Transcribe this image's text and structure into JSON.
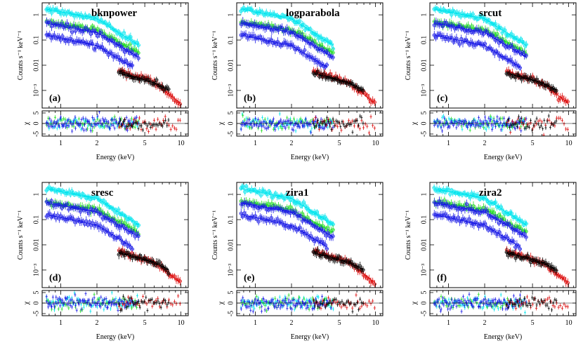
{
  "figure": {
    "xlabel": "Energy (keV)",
    "ylabel_spec": "Counts s⁻¹ keV⁻¹",
    "ylabel_resid": "χ"
  },
  "colors": {
    "cyan": "#00e5ee",
    "blue": "#1a1ae6",
    "green": "#22dd22",
    "red": "#dd1111",
    "black": "#000000",
    "frame": "#000000"
  },
  "chart_data": [
    {
      "type": "scatter",
      "model": "bknpower",
      "panel_letter": "(a)",
      "x_scale": "log",
      "y_scale": "log",
      "xlim": [
        0.7,
        11.5
      ],
      "ylim_spectrum": [
        0.0002,
        3
      ],
      "ylim_residual": [
        -6,
        6
      ],
      "x_ticks": [
        1,
        2,
        5,
        10
      ],
      "x_tick_labels": [
        "1",
        "2",
        "5",
        "10"
      ],
      "y_ticks": [
        1,
        0.1,
        0.01,
        0.001
      ],
      "y_tick_labels": [
        "1",
        "0.1",
        "0.01",
        "10⁻³"
      ],
      "resid_ticks": [
        5,
        0,
        -5
      ],
      "resid_tick_labels": [
        "5",
        "0",
        "-5"
      ],
      "series": [
        {
          "color": "cyan",
          "x_range": [
            0.75,
            4.5
          ],
          "y_at": [
            [
              0.8,
              1.6
            ],
            [
              2.0,
              0.7
            ],
            [
              4.5,
              0.06
            ]
          ]
        },
        {
          "color": "green",
          "x_range": [
            0.75,
            4.5
          ],
          "y_at": [
            [
              0.8,
              0.5
            ],
            [
              2.0,
              0.25
            ],
            [
              4.5,
              0.03
            ]
          ]
        },
        {
          "color": "blue",
          "x_range": [
            0.75,
            4.5
          ],
          "y_at": [
            [
              0.8,
              0.45
            ],
            [
              2.0,
              0.2
            ],
            [
              4.5,
              0.02
            ]
          ]
        },
        {
          "color": "blue",
          "x_range": [
            0.75,
            4.0
          ],
          "y_at": [
            [
              0.8,
              0.15
            ],
            [
              2.0,
              0.06
            ],
            [
              4.0,
              0.008
            ]
          ]
        },
        {
          "color": "red",
          "x_range": [
            3.0,
            10.0
          ],
          "y_at": [
            [
              3.0,
              0.006
            ],
            [
              6.0,
              0.002
            ],
            [
              10.0,
              0.0003
            ]
          ]
        },
        {
          "color": "black",
          "x_range": [
            3.0,
            8.0
          ],
          "y_at": [
            [
              3.0,
              0.005
            ],
            [
              6.0,
              0.002
            ],
            [
              8.0,
              0.001
            ]
          ]
        }
      ]
    },
    {
      "type": "scatter",
      "model": "logparabola",
      "panel_letter": "(b)",
      "x_scale": "log",
      "y_scale": "log",
      "xlim": [
        0.7,
        11.5
      ],
      "ylim_spectrum": [
        0.0002,
        3
      ],
      "ylim_residual": [
        -6,
        6
      ],
      "x_ticks": [
        1,
        2,
        5,
        10
      ],
      "x_tick_labels": [
        "1",
        "2",
        "5",
        "10"
      ],
      "y_ticks": [
        1,
        0.1,
        0.01,
        0.001
      ],
      "y_tick_labels": [
        "1",
        "0.1",
        "0.01",
        "10⁻³"
      ],
      "resid_ticks": [
        5,
        0,
        -5
      ],
      "resid_tick_labels": [
        "5",
        "0",
        "-5"
      ],
      "series": [
        {
          "color": "cyan",
          "x_range": [
            0.75,
            4.5
          ],
          "y_at": [
            [
              0.8,
              1.6
            ],
            [
              2.0,
              0.7
            ],
            [
              4.5,
              0.06
            ]
          ]
        },
        {
          "color": "green",
          "x_range": [
            0.75,
            4.5
          ],
          "y_at": [
            [
              0.8,
              0.5
            ],
            [
              2.0,
              0.25
            ],
            [
              4.5,
              0.03
            ]
          ]
        },
        {
          "color": "blue",
          "x_range": [
            0.75,
            4.5
          ],
          "y_at": [
            [
              0.8,
              0.45
            ],
            [
              2.0,
              0.2
            ],
            [
              4.5,
              0.02
            ]
          ]
        },
        {
          "color": "blue",
          "x_range": [
            0.75,
            4.0
          ],
          "y_at": [
            [
              0.8,
              0.15
            ],
            [
              2.0,
              0.06
            ],
            [
              4.0,
              0.008
            ]
          ]
        },
        {
          "color": "red",
          "x_range": [
            3.0,
            10.0
          ],
          "y_at": [
            [
              3.0,
              0.006
            ],
            [
              6.0,
              0.002
            ],
            [
              10.0,
              0.0003
            ]
          ]
        },
        {
          "color": "black",
          "x_range": [
            3.0,
            8.0
          ],
          "y_at": [
            [
              3.0,
              0.005
            ],
            [
              6.0,
              0.002
            ],
            [
              8.0,
              0.001
            ]
          ]
        }
      ]
    },
    {
      "type": "scatter",
      "model": "srcut",
      "panel_letter": "(c)",
      "x_scale": "log",
      "y_scale": "log",
      "xlim": [
        0.7,
        11.5
      ],
      "ylim_spectrum": [
        0.0002,
        3
      ],
      "ylim_residual": [
        -6,
        6
      ],
      "x_ticks": [
        1,
        2,
        5,
        10
      ],
      "x_tick_labels": [
        "1",
        "2",
        "5",
        "10"
      ],
      "y_ticks": [
        1,
        0.1,
        0.01,
        0.001
      ],
      "y_tick_labels": [
        "1",
        "0.1",
        "0.01",
        "10⁻³"
      ],
      "resid_ticks": [
        5,
        0,
        -5
      ],
      "resid_tick_labels": [
        "5",
        "0",
        "-5"
      ],
      "series": [
        {
          "color": "cyan",
          "x_range": [
            0.75,
            4.5
          ],
          "y_at": [
            [
              0.8,
              1.6
            ],
            [
              2.0,
              0.7
            ],
            [
              4.5,
              0.06
            ]
          ]
        },
        {
          "color": "green",
          "x_range": [
            0.75,
            4.5
          ],
          "y_at": [
            [
              0.8,
              0.5
            ],
            [
              2.0,
              0.25
            ],
            [
              4.5,
              0.03
            ]
          ]
        },
        {
          "color": "blue",
          "x_range": [
            0.75,
            4.5
          ],
          "y_at": [
            [
              0.8,
              0.45
            ],
            [
              2.0,
              0.2
            ],
            [
              4.5,
              0.02
            ]
          ]
        },
        {
          "color": "blue",
          "x_range": [
            0.75,
            4.0
          ],
          "y_at": [
            [
              0.8,
              0.15
            ],
            [
              2.0,
              0.06
            ],
            [
              4.0,
              0.008
            ]
          ]
        },
        {
          "color": "red",
          "x_range": [
            3.0,
            10.0
          ],
          "y_at": [
            [
              3.0,
              0.006
            ],
            [
              6.0,
              0.002
            ],
            [
              10.0,
              0.0003
            ]
          ]
        },
        {
          "color": "black",
          "x_range": [
            3.0,
            8.0
          ],
          "y_at": [
            [
              3.0,
              0.005
            ],
            [
              6.0,
              0.002
            ],
            [
              8.0,
              0.001
            ]
          ]
        }
      ]
    },
    {
      "type": "scatter",
      "model": "sresc",
      "panel_letter": "(d)",
      "x_scale": "log",
      "y_scale": "log",
      "xlim": [
        0.7,
        11.5
      ],
      "ylim_spectrum": [
        0.0002,
        3
      ],
      "ylim_residual": [
        -6,
        6
      ],
      "x_ticks": [
        1,
        2,
        5,
        10
      ],
      "x_tick_labels": [
        "1",
        "2",
        "5",
        "10"
      ],
      "y_ticks": [
        1,
        0.1,
        0.01,
        0.001
      ],
      "y_tick_labels": [
        "1",
        "0.1",
        "0.01",
        "10⁻³"
      ],
      "resid_ticks": [
        5,
        0,
        -5
      ],
      "resid_tick_labels": [
        "5",
        "0",
        "-5"
      ],
      "series": [
        {
          "color": "cyan",
          "x_range": [
            0.75,
            4.5
          ],
          "y_at": [
            [
              0.8,
              1.6
            ],
            [
              2.0,
              0.7
            ],
            [
              4.5,
              0.06
            ]
          ]
        },
        {
          "color": "green",
          "x_range": [
            0.75,
            4.5
          ],
          "y_at": [
            [
              0.8,
              0.5
            ],
            [
              2.0,
              0.25
            ],
            [
              4.5,
              0.03
            ]
          ]
        },
        {
          "color": "blue",
          "x_range": [
            0.75,
            4.5
          ],
          "y_at": [
            [
              0.8,
              0.45
            ],
            [
              2.0,
              0.2
            ],
            [
              4.5,
              0.02
            ]
          ]
        },
        {
          "color": "blue",
          "x_range": [
            0.75,
            4.0
          ],
          "y_at": [
            [
              0.8,
              0.15
            ],
            [
              2.0,
              0.06
            ],
            [
              4.0,
              0.008
            ]
          ]
        },
        {
          "color": "red",
          "x_range": [
            3.0,
            10.0
          ],
          "y_at": [
            [
              3.0,
              0.006
            ],
            [
              6.0,
              0.002
            ],
            [
              10.0,
              0.0003
            ]
          ]
        },
        {
          "color": "black",
          "x_range": [
            3.0,
            8.0
          ],
          "y_at": [
            [
              3.0,
              0.005
            ],
            [
              6.0,
              0.002
            ],
            [
              8.0,
              0.001
            ]
          ]
        }
      ]
    },
    {
      "type": "scatter",
      "model": "zira1",
      "panel_letter": "(e)",
      "x_scale": "log",
      "y_scale": "log",
      "xlim": [
        0.7,
        11.5
      ],
      "ylim_spectrum": [
        0.0002,
        3
      ],
      "ylim_residual": [
        -6,
        6
      ],
      "x_ticks": [
        1,
        2,
        5,
        10
      ],
      "x_tick_labels": [
        "1",
        "2",
        "5",
        "10"
      ],
      "y_ticks": [
        1,
        0.1,
        0.01,
        0.001
      ],
      "y_tick_labels": [
        "1",
        "0.1",
        "0.01",
        "10⁻³"
      ],
      "resid_ticks": [
        5,
        0,
        -5
      ],
      "resid_tick_labels": [
        "5",
        "0",
        "-5"
      ],
      "series": [
        {
          "color": "cyan",
          "x_range": [
            0.75,
            4.5
          ],
          "y_at": [
            [
              0.8,
              1.6
            ],
            [
              2.0,
              0.7
            ],
            [
              4.5,
              0.06
            ]
          ]
        },
        {
          "color": "green",
          "x_range": [
            0.75,
            4.5
          ],
          "y_at": [
            [
              0.8,
              0.5
            ],
            [
              2.0,
              0.25
            ],
            [
              4.5,
              0.03
            ]
          ]
        },
        {
          "color": "blue",
          "x_range": [
            0.75,
            4.5
          ],
          "y_at": [
            [
              0.8,
              0.45
            ],
            [
              2.0,
              0.2
            ],
            [
              4.5,
              0.02
            ]
          ]
        },
        {
          "color": "blue",
          "x_range": [
            0.75,
            4.0
          ],
          "y_at": [
            [
              0.8,
              0.15
            ],
            [
              2.0,
              0.06
            ],
            [
              4.0,
              0.008
            ]
          ]
        },
        {
          "color": "red",
          "x_range": [
            3.0,
            10.0
          ],
          "y_at": [
            [
              3.0,
              0.006
            ],
            [
              6.0,
              0.002
            ],
            [
              10.0,
              0.0003
            ]
          ]
        },
        {
          "color": "black",
          "x_range": [
            3.0,
            8.0
          ],
          "y_at": [
            [
              3.0,
              0.005
            ],
            [
              6.0,
              0.002
            ],
            [
              8.0,
              0.001
            ]
          ]
        }
      ]
    },
    {
      "type": "scatter",
      "model": "zira2",
      "panel_letter": "(f)",
      "x_scale": "log",
      "y_scale": "log",
      "xlim": [
        0.7,
        11.5
      ],
      "ylim_spectrum": [
        0.0002,
        3
      ],
      "ylim_residual": [
        -6,
        6
      ],
      "x_ticks": [
        1,
        2,
        5,
        10
      ],
      "x_tick_labels": [
        "1",
        "2",
        "5",
        "10"
      ],
      "y_ticks": [
        1,
        0.1,
        0.01,
        0.001
      ],
      "y_tick_labels": [
        "1",
        "0.1",
        "0.01",
        "10⁻³"
      ],
      "resid_ticks": [
        5,
        0,
        -5
      ],
      "resid_tick_labels": [
        "5",
        "0",
        "-5"
      ],
      "series": [
        {
          "color": "cyan",
          "x_range": [
            0.75,
            4.5
          ],
          "y_at": [
            [
              0.8,
              1.6
            ],
            [
              2.0,
              0.7
            ],
            [
              4.5,
              0.06
            ]
          ]
        },
        {
          "color": "green",
          "x_range": [
            0.75,
            4.5
          ],
          "y_at": [
            [
              0.8,
              0.5
            ],
            [
              2.0,
              0.25
            ],
            [
              4.5,
              0.03
            ]
          ]
        },
        {
          "color": "blue",
          "x_range": [
            0.75,
            4.5
          ],
          "y_at": [
            [
              0.8,
              0.45
            ],
            [
              2.0,
              0.2
            ],
            [
              4.5,
              0.02
            ]
          ]
        },
        {
          "color": "blue",
          "x_range": [
            0.75,
            4.0
          ],
          "y_at": [
            [
              0.8,
              0.15
            ],
            [
              2.0,
              0.06
            ],
            [
              4.0,
              0.008
            ]
          ]
        },
        {
          "color": "red",
          "x_range": [
            3.0,
            10.0
          ],
          "y_at": [
            [
              3.0,
              0.006
            ],
            [
              6.0,
              0.002
            ],
            [
              10.0,
              0.0003
            ]
          ]
        },
        {
          "color": "black",
          "x_range": [
            3.0,
            8.0
          ],
          "y_at": [
            [
              3.0,
              0.005
            ],
            [
              6.0,
              0.002
            ],
            [
              8.0,
              0.001
            ]
          ]
        }
      ]
    }
  ]
}
